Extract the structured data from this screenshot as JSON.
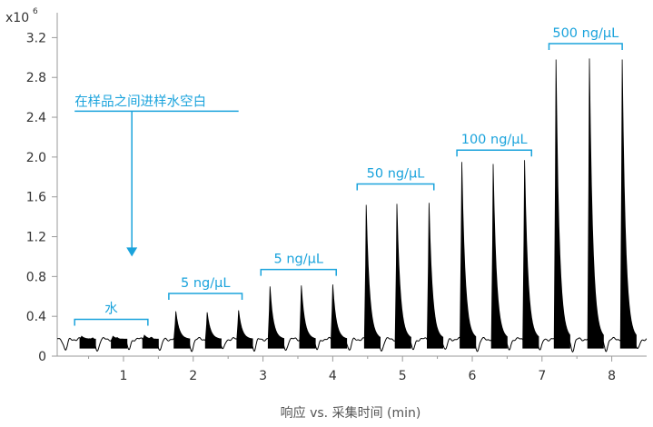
{
  "colors": {
    "accent": "#1aa3dc",
    "signal": "#000000",
    "axis": "#9a9a9a",
    "text": "#333333"
  },
  "chart_data": {
    "type": "line",
    "title": "",
    "xlabel": "响应 vs. 采集时间 (min)",
    "ylabel": "",
    "y_scale_label": "x10",
    "y_scale_exponent": "6",
    "xlim": [
      0.05,
      8.5
    ],
    "ylim": [
      0,
      3.45
    ],
    "x_ticks": [
      1,
      2,
      3,
      4,
      5,
      6,
      7,
      8
    ],
    "y_ticks": [
      0,
      0.4,
      0.8,
      1.2,
      1.6,
      2.0,
      2.4,
      2.8,
      3.2
    ],
    "y_tick_labels": [
      "0",
      "0.4",
      "0.8",
      "1.2",
      "1.6",
      "2.0",
      "2.4",
      "2.8",
      "3.2"
    ],
    "grid": false,
    "baseline": 0.17,
    "series": [
      {
        "peaks": [
          {
            "x": 0.4,
            "y": 0.2
          },
          {
            "x": 0.85,
            "y": 0.2
          },
          {
            "x": 1.3,
            "y": 0.21
          },
          {
            "x": 1.75,
            "y": 0.45
          },
          {
            "x": 2.2,
            "y": 0.44
          },
          {
            "x": 2.65,
            "y": 0.46
          },
          {
            "x": 3.1,
            "y": 0.7
          },
          {
            "x": 3.55,
            "y": 0.71
          },
          {
            "x": 4.0,
            "y": 0.72
          },
          {
            "x": 4.48,
            "y": 1.52
          },
          {
            "x": 4.92,
            "y": 1.53
          },
          {
            "x": 5.38,
            "y": 1.54
          },
          {
            "x": 5.85,
            "y": 1.95
          },
          {
            "x": 6.3,
            "y": 1.93
          },
          {
            "x": 6.75,
            "y": 1.97
          },
          {
            "x": 7.2,
            "y": 2.98
          },
          {
            "x": 7.68,
            "y": 2.99
          },
          {
            "x": 8.15,
            "y": 2.98
          }
        ]
      }
    ],
    "annotations": [
      {
        "text": "在样品之间进样水空白",
        "x0": 0.3,
        "x1": 2.65,
        "y": 2.57,
        "arrow_x": 1.12,
        "arrow_to_y": 1.0
      },
      {
        "text": "水",
        "x0": 0.3,
        "x1": 1.35,
        "y": 0.37
      },
      {
        "text": "5 ng/μL",
        "x0": 1.65,
        "x1": 2.7,
        "y": 0.63
      },
      {
        "text": "5 ng/μL",
        "x0": 2.97,
        "x1": 4.05,
        "y": 0.87
      },
      {
        "text": "50 ng/μL",
        "x0": 4.35,
        "x1": 5.45,
        "y": 1.73
      },
      {
        "text": "100 ng/μL",
        "x0": 5.78,
        "x1": 6.85,
        "y": 2.07
      },
      {
        "text": "500 ng/μL",
        "x0": 7.1,
        "x1": 8.15,
        "y": 3.14
      }
    ]
  }
}
